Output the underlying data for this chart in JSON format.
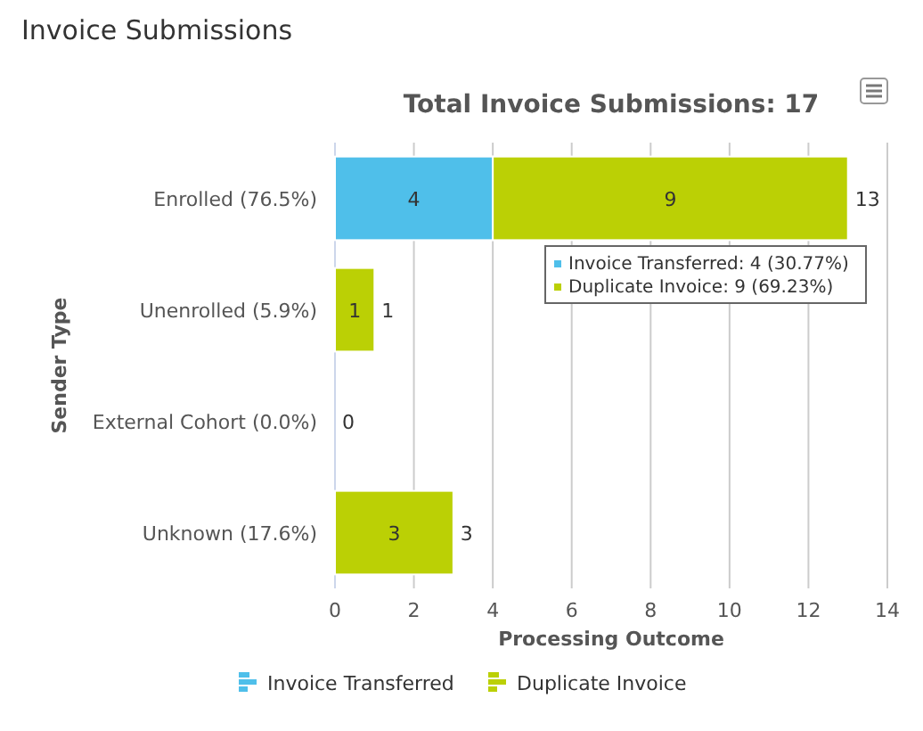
{
  "chart_data": {
    "type": "bar",
    "orientation": "horizontal",
    "stacked": true,
    "title": "Invoice Submissions",
    "subtitle": "Total Invoice Submissions: 17",
    "xlabel": "Processing Outcome",
    "ylabel": "Sender Type",
    "categories": [
      "Enrolled (76.5%)",
      "Unenrolled (5.9%)",
      "External Cohort (0.0%)",
      "Unknown (17.6%)"
    ],
    "series": [
      {
        "name": "Invoice Transferred",
        "color": "#4fbfea",
        "values": [
          4,
          0,
          0,
          0
        ],
        "value_labels": [
          "4",
          null,
          null,
          null
        ]
      },
      {
        "name": "Duplicate Invoice",
        "color": "#bbd005",
        "values": [
          9,
          1,
          0,
          3
        ],
        "value_labels": [
          "9",
          "1",
          null,
          "3"
        ]
      }
    ],
    "totals": [
      "13",
      "1",
      "0",
      "3"
    ],
    "xlim": [
      0,
      14
    ],
    "xticks": [
      0,
      2,
      4,
      6,
      8,
      10,
      12,
      14
    ],
    "grid": "x",
    "legend": "bottom",
    "annotations": [
      "Invoice Transferred: 4 (30.77%)",
      "Duplicate Invoice: 9 (69.23%)"
    ]
  }
}
